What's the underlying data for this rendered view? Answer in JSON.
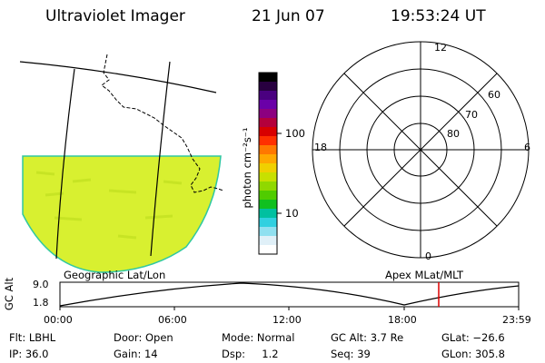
{
  "header": {
    "title": "Ultraviolet Imager",
    "date": "21 Jun 07",
    "time": "19:53:24 UT"
  },
  "colorbar": {
    "label": "photon cm⁻²s⁻¹",
    "ticks": [
      "100",
      "10"
    ],
    "colors": [
      "#000000",
      "#280040",
      "#4a0080",
      "#6a00a8",
      "#8c0080",
      "#b4003c",
      "#d80000",
      "#ff3000",
      "#ff7800",
      "#ffa800",
      "#f0d000",
      "#c8e000",
      "#90d800",
      "#50cc00",
      "#10c020",
      "#00c0a0",
      "#30d0e0",
      "#90e0f0",
      "#e0f0f8",
      "#ffffff"
    ]
  },
  "polar": {
    "hour_labels": [
      "12",
      "18",
      "6",
      "0"
    ],
    "lat_labels": [
      "60",
      "70",
      "80"
    ]
  },
  "strip": {
    "left_caption": "Geographic Lat/Lon",
    "right_caption": "Apex MLat/MLT",
    "axis_title": "GC Alt",
    "y_ticks": [
      "9.0",
      "1.8"
    ],
    "x_ticks": [
      "00:00",
      "06:00",
      "12:00",
      "18:00",
      "23:59"
    ],
    "marker_color": "#dd0000"
  },
  "info": {
    "row1": [
      "Flt: LBHL",
      "Door: Open",
      "Mode: Normal",
      "GC Alt: 3.7 Re",
      "GLat: −26.6"
    ],
    "row2": [
      "IP: 36.0",
      "Gain: 14",
      "Dsp:     1.2",
      "Seq: 39",
      "GLon: 305.8"
    ]
  },
  "image_fill_color": "#d8f030"
}
